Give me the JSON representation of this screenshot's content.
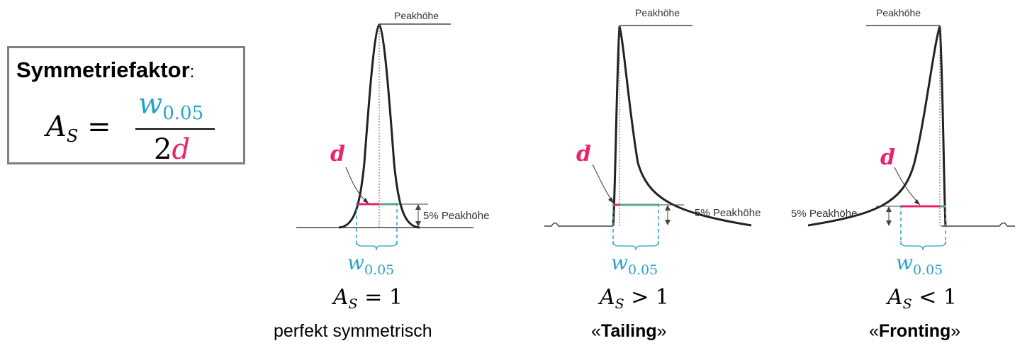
{
  "formula": {
    "title": "Symmetriefaktor",
    "colon": ":",
    "lhs_symbol": "A",
    "lhs_subscript": "S",
    "equals": "=",
    "numerator_symbol": "w",
    "numerator_subscript": "0.05",
    "denominator_number": "2",
    "denominator_symbol": "d"
  },
  "peaks": [
    {
      "peak_label": "Peakhöhe",
      "height_label": "5% Peakhöhe",
      "d_label": "d",
      "w_symbol": "w",
      "w_subscript": "0.05",
      "condition_symbol": "A",
      "condition_subscript": "S",
      "condition_rest": " = 1",
      "caption": "perfekt symmetrisch"
    },
    {
      "peak_label": "Peakhöhe",
      "height_label": "5% Peakhöhe",
      "d_label": "d",
      "w_symbol": "w",
      "w_subscript": "0.05",
      "condition_symbol": "A",
      "condition_subscript": "S",
      "condition_rest": " > 1",
      "caption_open": "«",
      "caption_bold": "Tailing",
      "caption_close": "»"
    },
    {
      "peak_label": "Peakhöhe",
      "height_label": "5% Peakhöhe",
      "d_label": "d",
      "w_symbol": "w",
      "w_subscript": "0.05",
      "condition_symbol": "A",
      "condition_subscript": "S",
      "condition_rest": " < 1",
      "caption_open": "«",
      "caption_bold": "Fronting",
      "caption_close": "»"
    }
  ],
  "colors": {
    "w_color": "#2aa2c8",
    "d_color": "#e8246e",
    "green_segment": "#5aa88a",
    "box_border": "#808080"
  }
}
